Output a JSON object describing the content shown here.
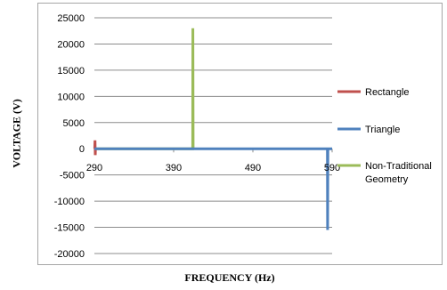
{
  "chart_data": {
    "type": "line",
    "title": "",
    "xlabel": "FREQUENCY (Hz)",
    "ylabel": "VOLTAGE (V)",
    "xlim": [
      290,
      590
    ],
    "ylim": [
      -20000,
      25000
    ],
    "xticks": [
      290,
      390,
      490,
      590
    ],
    "yticks": [
      25000,
      20000,
      15000,
      10000,
      5000,
      0,
      -5000,
      -10000,
      -15000,
      -20000
    ],
    "grid": "horizontal",
    "legend_position": "right",
    "series": [
      {
        "name": "Rectangle",
        "color": "#c0504d",
        "points": [
          [
            290,
            0
          ],
          [
            290.5,
            0
          ],
          [
            290.8,
            1600
          ],
          [
            291.1,
            -1200
          ],
          [
            291.4,
            0
          ]
        ]
      },
      {
        "name": "Triangle",
        "color": "#4f81bd",
        "points": [
          [
            290,
            0
          ],
          [
            584,
            0
          ],
          [
            584.3,
            -15500
          ],
          [
            584.6,
            0
          ],
          [
            590,
            0
          ]
        ]
      },
      {
        "name": "Non-Traditional Geometry",
        "color": "#9bbb59",
        "points": [
          [
            290,
            0
          ],
          [
            414,
            0
          ],
          [
            414.3,
            23000
          ],
          [
            414.6,
            0
          ]
        ]
      }
    ]
  }
}
